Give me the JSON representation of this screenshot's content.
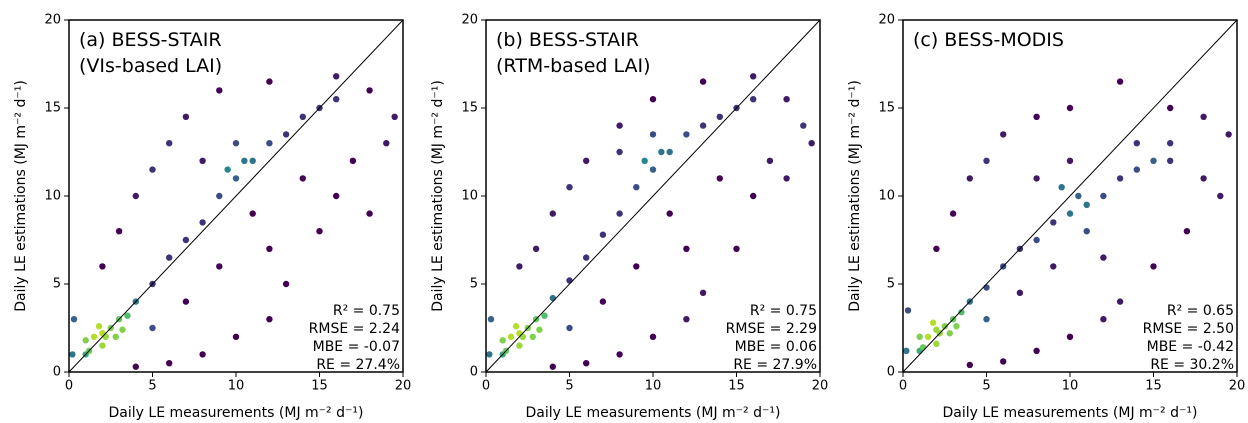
{
  "chart_data": [
    {
      "type": "scatter",
      "title": [
        "(a) BESS-STAIR",
        "(VIs-based LAI)"
      ],
      "x_label": "Daily LE measurements (MJ m⁻² d⁻¹)",
      "y_label": "Daily LE estimations (MJ m⁻² d⁻¹)",
      "annotations": [
        "R² = 0.75",
        "RMSE = 2.24",
        "MBE = -0.07",
        "RE = 27.4%"
      ],
      "xlim": [
        0,
        20
      ],
      "ylim": [
        0,
        20
      ],
      "xticks": [
        0,
        5,
        10,
        15,
        20
      ],
      "yticks": [
        0,
        5,
        10,
        15,
        20
      ],
      "identity_line": true,
      "colormap": [
        "#440154",
        "#3b528b",
        "#21918c",
        "#5ec962",
        "#b5de2b"
      ],
      "x": [
        1,
        1.5,
        2,
        2.5,
        2,
        3,
        1.8,
        2.8,
        3.5,
        1,
        4,
        5,
        6,
        7,
        8,
        9,
        10,
        11,
        12,
        13,
        14,
        15,
        16,
        3,
        4,
        5,
        6,
        7,
        9,
        12,
        16,
        18,
        19.5,
        19,
        17,
        15,
        13,
        12,
        10,
        8,
        6,
        4,
        0.3,
        0.2,
        2,
        8,
        10,
        11,
        14,
        16,
        18,
        9,
        7,
        5,
        12,
        2.2,
        1.2,
        3.2,
        10.5,
        9.5
      ],
      "y": [
        1,
        2,
        2.2,
        2.5,
        1.5,
        3,
        2.6,
        2,
        3.2,
        1.8,
        4,
        5,
        6.5,
        7.5,
        8.5,
        10,
        11,
        12,
        13,
        13.5,
        14.5,
        15,
        15.5,
        8,
        10,
        11.5,
        13,
        14.5,
        16,
        16.5,
        16.8,
        16,
        14.5,
        13,
        12,
        8,
        5,
        3,
        2,
        1,
        0.5,
        0.3,
        3,
        1,
        6,
        12,
        13,
        9,
        11,
        10,
        9,
        6,
        4,
        2.5,
        7,
        2,
        1.2,
        2.4,
        12,
        11.5
      ]
    },
    {
      "type": "scatter",
      "title": [
        "(b) BESS-STAIR",
        "(RTM-based LAI)"
      ],
      "x_label": "Daily LE measurements (MJ m⁻² d⁻¹)",
      "y_label": "Daily LE estimations (MJ m⁻² d⁻¹)",
      "annotations": [
        "R² = 0.75",
        "RMSE = 2.29",
        "MBE = 0.06",
        "RE = 27.9%"
      ],
      "xlim": [
        0,
        20
      ],
      "ylim": [
        0,
        20
      ],
      "xticks": [
        0,
        5,
        10,
        15,
        20
      ],
      "yticks": [
        0,
        5,
        10,
        15,
        20
      ],
      "identity_line": true,
      "colormap": [
        "#440154",
        "#3b528b",
        "#21918c",
        "#5ec962",
        "#b5de2b"
      ],
      "x": [
        1,
        1.5,
        2,
        2.5,
        2,
        3,
        1.8,
        2.8,
        3.5,
        1,
        4,
        5,
        6,
        7,
        8,
        9,
        10,
        11,
        12,
        13,
        14,
        15,
        16,
        3,
        4,
        5,
        6,
        8,
        10,
        13,
        16,
        18,
        19.5,
        19,
        17,
        15,
        13,
        12,
        10,
        8,
        6,
        4,
        0.3,
        0.2,
        2,
        8,
        10,
        11,
        14,
        16,
        18,
        9,
        7,
        5,
        12,
        2.2,
        1.2,
        3.2,
        10.5,
        9.5
      ],
      "y": [
        1,
        2,
        2.2,
        2.5,
        1.5,
        3,
        2.6,
        2,
        3.2,
        1.8,
        4.2,
        5.2,
        6.5,
        7.8,
        9,
        10.5,
        11.5,
        12.5,
        13.5,
        14,
        14.5,
        15,
        15.5,
        7,
        9,
        10.5,
        12,
        14,
        15.5,
        16.5,
        16.8,
        15.5,
        13,
        14,
        12,
        7,
        4.5,
        3,
        2,
        1,
        0.5,
        0.3,
        3,
        1,
        6,
        12.5,
        13.5,
        9,
        11,
        10,
        11,
        6,
        4,
        2.5,
        7,
        2,
        1.2,
        2.4,
        12.5,
        12
      ]
    },
    {
      "type": "scatter",
      "title": [
        "(c) BESS-MODIS"
      ],
      "x_label": "Daily LE measurements (MJ m⁻² d⁻¹)",
      "y_label": "Daily LE estimations (MJ m⁻² d⁻¹)",
      "annotations": [
        "R² = 0.65",
        "RMSE = 2.50",
        "MBE = -0.42",
        "RE = 30.2%"
      ],
      "xlim": [
        0,
        20
      ],
      "ylim": [
        0,
        20
      ],
      "xticks": [
        0,
        5,
        10,
        15,
        20
      ],
      "yticks": [
        0,
        5,
        10,
        15,
        20
      ],
      "identity_line": true,
      "colormap": [
        "#440154",
        "#3b528b",
        "#21918c",
        "#5ec962",
        "#b5de2b"
      ],
      "x": [
        1,
        1.5,
        2,
        2.5,
        2,
        3,
        1.8,
        2.8,
        3.5,
        1,
        4,
        5,
        6,
        7,
        8,
        9,
        10,
        11,
        12,
        13,
        14,
        15,
        16,
        3,
        4,
        5,
        6,
        8,
        10,
        13,
        16,
        18,
        19.5,
        19,
        17,
        15,
        13,
        12,
        10,
        8,
        6,
        4,
        0.3,
        0.2,
        2,
        8,
        10,
        11,
        14,
        16,
        18,
        9,
        7,
        5,
        12,
        2.2,
        1.2,
        3.2,
        10.5,
        9.5
      ],
      "y": [
        1.2,
        2,
        2.4,
        2.6,
        1.6,
        3,
        2.8,
        2.2,
        3.4,
        2,
        4,
        4.8,
        6,
        7,
        7.5,
        8.5,
        9,
        9.5,
        10,
        11,
        11.5,
        12,
        13,
        9,
        11,
        12,
        13.5,
        14.5,
        15,
        16.5,
        15,
        14.5,
        13.5,
        10,
        8,
        6,
        4,
        3,
        2,
        1.2,
        0.6,
        0.4,
        3.5,
        1.2,
        7,
        11,
        12,
        8,
        13,
        12,
        11,
        6,
        4.5,
        3,
        6.5,
        2.2,
        1.4,
        2.6,
        10,
        10.5
      ]
    }
  ]
}
